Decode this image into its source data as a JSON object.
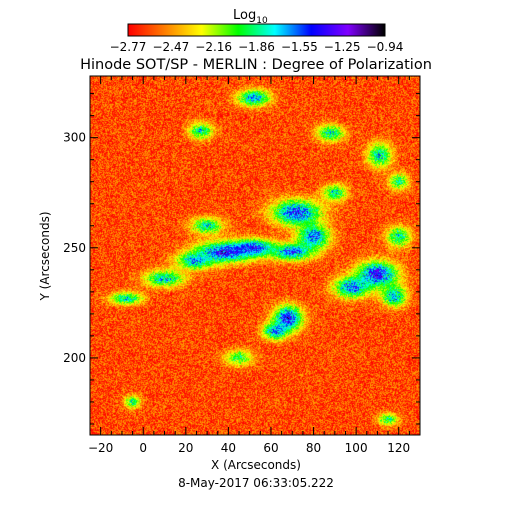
{
  "chart_data": {
    "type": "heatmap",
    "title": "Hinode SOT/SP - MERLIN : Degree of Polarization",
    "xlabel": "X (Arcseconds)",
    "ylabel": "Y (Arcseconds)",
    "footer": "8-May-2017 06:33:05.222",
    "xlim": [
      -25,
      130
    ],
    "ylim": [
      165,
      328
    ],
    "x_ticks": [
      -20,
      0,
      20,
      40,
      60,
      80,
      100,
      120
    ],
    "y_ticks": [
      200,
      250,
      300
    ],
    "colorbar": {
      "label_main": "Log",
      "label_sub": "10",
      "range": [
        -2.77,
        -0.94
      ],
      "tick_labels": [
        "-2.77",
        "-2.47",
        "-2.16",
        "-1.86",
        "-1.55",
        "-1.25",
        "-0.94"
      ],
      "colors": [
        "#ff0000",
        "#ff7f00",
        "#ffff00",
        "#00ff00",
        "#00ffff",
        "#0000ff",
        "#8000ff",
        "#000000"
      ]
    },
    "background_level": -2.62,
    "features": [
      {
        "x": 38,
        "y": 248,
        "rx": 14,
        "ry": 5,
        "level": -1.1
      },
      {
        "x": 52,
        "y": 250,
        "rx": 10,
        "ry": 4,
        "level": -1.2
      },
      {
        "x": 72,
        "y": 266,
        "rx": 12,
        "ry": 6,
        "level": -1.15
      },
      {
        "x": 80,
        "y": 255,
        "rx": 8,
        "ry": 6,
        "level": -1.3
      },
      {
        "x": 70,
        "y": 248,
        "rx": 10,
        "ry": 4,
        "level": -1.25
      },
      {
        "x": 68,
        "y": 218,
        "rx": 7,
        "ry": 6,
        "level": -1.05
      },
      {
        "x": 62,
        "y": 212,
        "rx": 6,
        "ry": 4,
        "level": -1.35
      },
      {
        "x": 110,
        "y": 238,
        "rx": 10,
        "ry": 6,
        "level": -1.05
      },
      {
        "x": 98,
        "y": 232,
        "rx": 9,
        "ry": 5,
        "level": -1.3
      },
      {
        "x": 118,
        "y": 228,
        "rx": 6,
        "ry": 5,
        "level": -1.4
      },
      {
        "x": 10,
        "y": 236,
        "rx": 10,
        "ry": 4,
        "level": -1.5
      },
      {
        "x": -8,
        "y": 227,
        "rx": 8,
        "ry": 3,
        "level": -1.55
      },
      {
        "x": 24,
        "y": 244,
        "rx": 9,
        "ry": 4,
        "level": -1.45
      },
      {
        "x": 30,
        "y": 260,
        "rx": 8,
        "ry": 4,
        "level": -1.6
      },
      {
        "x": 52,
        "y": 318,
        "rx": 8,
        "ry": 4,
        "level": -1.4
      },
      {
        "x": 27,
        "y": 303,
        "rx": 6,
        "ry": 4,
        "level": -1.6
      },
      {
        "x": 88,
        "y": 302,
        "rx": 7,
        "ry": 4,
        "level": -1.6
      },
      {
        "x": 111,
        "y": 292,
        "rx": 6,
        "ry": 6,
        "level": -1.55
      },
      {
        "x": 120,
        "y": 255,
        "rx": 6,
        "ry": 5,
        "level": -1.6
      },
      {
        "x": 120,
        "y": 280,
        "rx": 5,
        "ry": 4,
        "level": -1.7
      },
      {
        "x": 45,
        "y": 200,
        "rx": 7,
        "ry": 4,
        "level": -1.8
      },
      {
        "x": -5,
        "y": 180,
        "rx": 4,
        "ry": 3,
        "level": -1.7
      },
      {
        "x": 115,
        "y": 172,
        "rx": 5,
        "ry": 3,
        "level": -1.75
      },
      {
        "x": 90,
        "y": 275,
        "rx": 6,
        "ry": 4,
        "level": -1.6
      }
    ]
  }
}
